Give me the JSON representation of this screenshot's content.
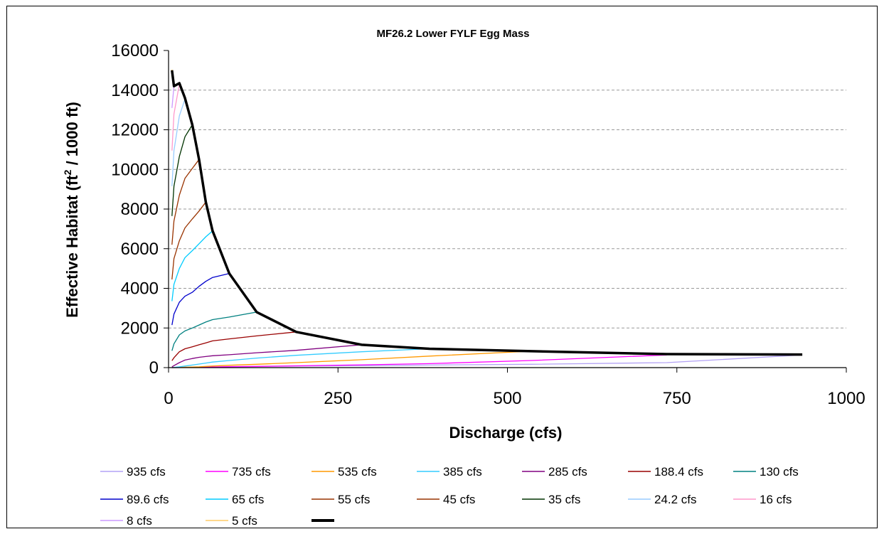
{
  "chart_data": {
    "type": "line",
    "title": "MF26.2 Lower FYLF Egg Mass",
    "xlabel": "Discharge (cfs)",
    "ylabel_parts": [
      "Effective Habitat (ft",
      "2",
      " / 1000 ft)"
    ],
    "xlim": [
      0,
      1000
    ],
    "ylim": [
      0,
      16000
    ],
    "xticks": [
      0,
      250,
      500,
      750,
      1000
    ],
    "yticks": [
      0,
      2000,
      4000,
      6000,
      8000,
      10000,
      12000,
      14000,
      16000
    ],
    "grid": "horizontal dashed",
    "legend_position": "bottom",
    "series": [
      {
        "name": "935 cfs",
        "color": "#b3a2f5",
        "x": [
          5,
          8,
          16,
          24.2,
          35,
          45,
          55,
          65,
          89.6,
          130,
          188.4,
          285,
          385,
          535,
          735,
          935
        ],
        "y": [
          0,
          0,
          5,
          10,
          15,
          20,
          25,
          30,
          40,
          55,
          75,
          100,
          130,
          170,
          250,
          640
        ]
      },
      {
        "name": "735 cfs",
        "color": "#ff00ff",
        "x": [
          5,
          8,
          16,
          24.2,
          35,
          45,
          55,
          65,
          89.6,
          130,
          188.4,
          285,
          385,
          535,
          735
        ],
        "y": [
          0,
          0,
          5,
          10,
          15,
          20,
          25,
          30,
          45,
          60,
          90,
          140,
          200,
          360,
          640
        ]
      },
      {
        "name": "535 cfs",
        "color": "#ff9900",
        "x": [
          5,
          8,
          16,
          24.2,
          35,
          45,
          55,
          65,
          89.6,
          130,
          188.4,
          285,
          385,
          535
        ],
        "y": [
          0,
          0,
          10,
          20,
          30,
          40,
          60,
          80,
          120,
          170,
          250,
          400,
          580,
          830
        ]
      },
      {
        "name": "385 cfs",
        "color": "#33ccff",
        "x": [
          5,
          8,
          16,
          24.2,
          35,
          45,
          55,
          65,
          89.6,
          130,
          188.4,
          285,
          385
        ],
        "y": [
          0,
          10,
          40,
          80,
          130,
          180,
          230,
          280,
          360,
          480,
          620,
          800,
          950
        ]
      },
      {
        "name": "285 cfs",
        "color": "#800080",
        "x": [
          5,
          8,
          16,
          24.2,
          35,
          45,
          55,
          65,
          89.6,
          130,
          188.4,
          285
        ],
        "y": [
          40,
          100,
          250,
          380,
          460,
          520,
          560,
          600,
          650,
          750,
          870,
          1150
        ]
      },
      {
        "name": "188.4 cfs",
        "color": "#990000",
        "x": [
          5,
          8,
          16,
          24.2,
          35,
          45,
          55,
          65,
          89.6,
          130,
          188.4
        ],
        "y": [
          350,
          500,
          800,
          950,
          1050,
          1150,
          1250,
          1350,
          1450,
          1600,
          1800
        ]
      },
      {
        "name": "130 cfs",
        "color": "#008080",
        "x": [
          5,
          8,
          16,
          24.2,
          35,
          45,
          55,
          65,
          89.6,
          130
        ],
        "y": [
          850,
          1200,
          1650,
          1850,
          2000,
          2150,
          2300,
          2420,
          2550,
          2800
        ]
      },
      {
        "name": "89.6 cfs",
        "color": "#0000cc",
        "x": [
          5,
          8,
          16,
          24.2,
          35,
          45,
          55,
          65,
          89.6
        ],
        "y": [
          2150,
          2700,
          3300,
          3600,
          3800,
          4100,
          4350,
          4550,
          4750
        ]
      },
      {
        "name": "65 cfs",
        "color": "#00ccff",
        "x": [
          5,
          8,
          16,
          24.2,
          35,
          45,
          55,
          65
        ],
        "y": [
          3350,
          4200,
          5000,
          5550,
          5900,
          6250,
          6600,
          6900
        ]
      },
      {
        "name": "55 cfs",
        "color": "#993300",
        "x": [
          5,
          8,
          16,
          24.2,
          35,
          45,
          55
        ],
        "y": [
          4450,
          5500,
          6400,
          7050,
          7500,
          7900,
          8350
        ]
      },
      {
        "name": "45 cfs",
        "color": "#993300",
        "x": [
          5,
          8,
          16,
          24.2,
          35,
          45
        ],
        "y": [
          6200,
          7400,
          8700,
          9550,
          10050,
          10500
        ]
      },
      {
        "name": "35 cfs",
        "color": "#003300",
        "x": [
          5,
          8,
          16,
          24.2,
          35
        ],
        "y": [
          7650,
          9150,
          10650,
          11650,
          12250
        ]
      },
      {
        "name": "24.2 cfs",
        "color": "#99ccff",
        "x": [
          5,
          8,
          16,
          24.2
        ],
        "y": [
          9150,
          10950,
          12700,
          13550
        ]
      },
      {
        "name": "16 cfs",
        "color": "#ff99cc",
        "x": [
          5,
          8,
          16
        ],
        "y": [
          10950,
          12800,
          14300
        ]
      },
      {
        "name": "8 cfs",
        "color": "#cc99ff",
        "x": [
          5,
          8
        ],
        "y": [
          13100,
          14200
        ]
      },
      {
        "name": "5 cfs",
        "color": "#ffcc66",
        "x": [
          5
        ],
        "y": [
          15000
        ]
      },
      {
        "name": "",
        "color": "#000000",
        "x": [
          5,
          8,
          16,
          24.2,
          35,
          45,
          55,
          65,
          89.6,
          130,
          188.4,
          285,
          385,
          535,
          735,
          935
        ],
        "y": [
          15000,
          14200,
          14350,
          13600,
          12250,
          10500,
          8350,
          6900,
          4750,
          2800,
          1800,
          1150,
          950,
          830,
          680,
          660
        ]
      }
    ]
  }
}
